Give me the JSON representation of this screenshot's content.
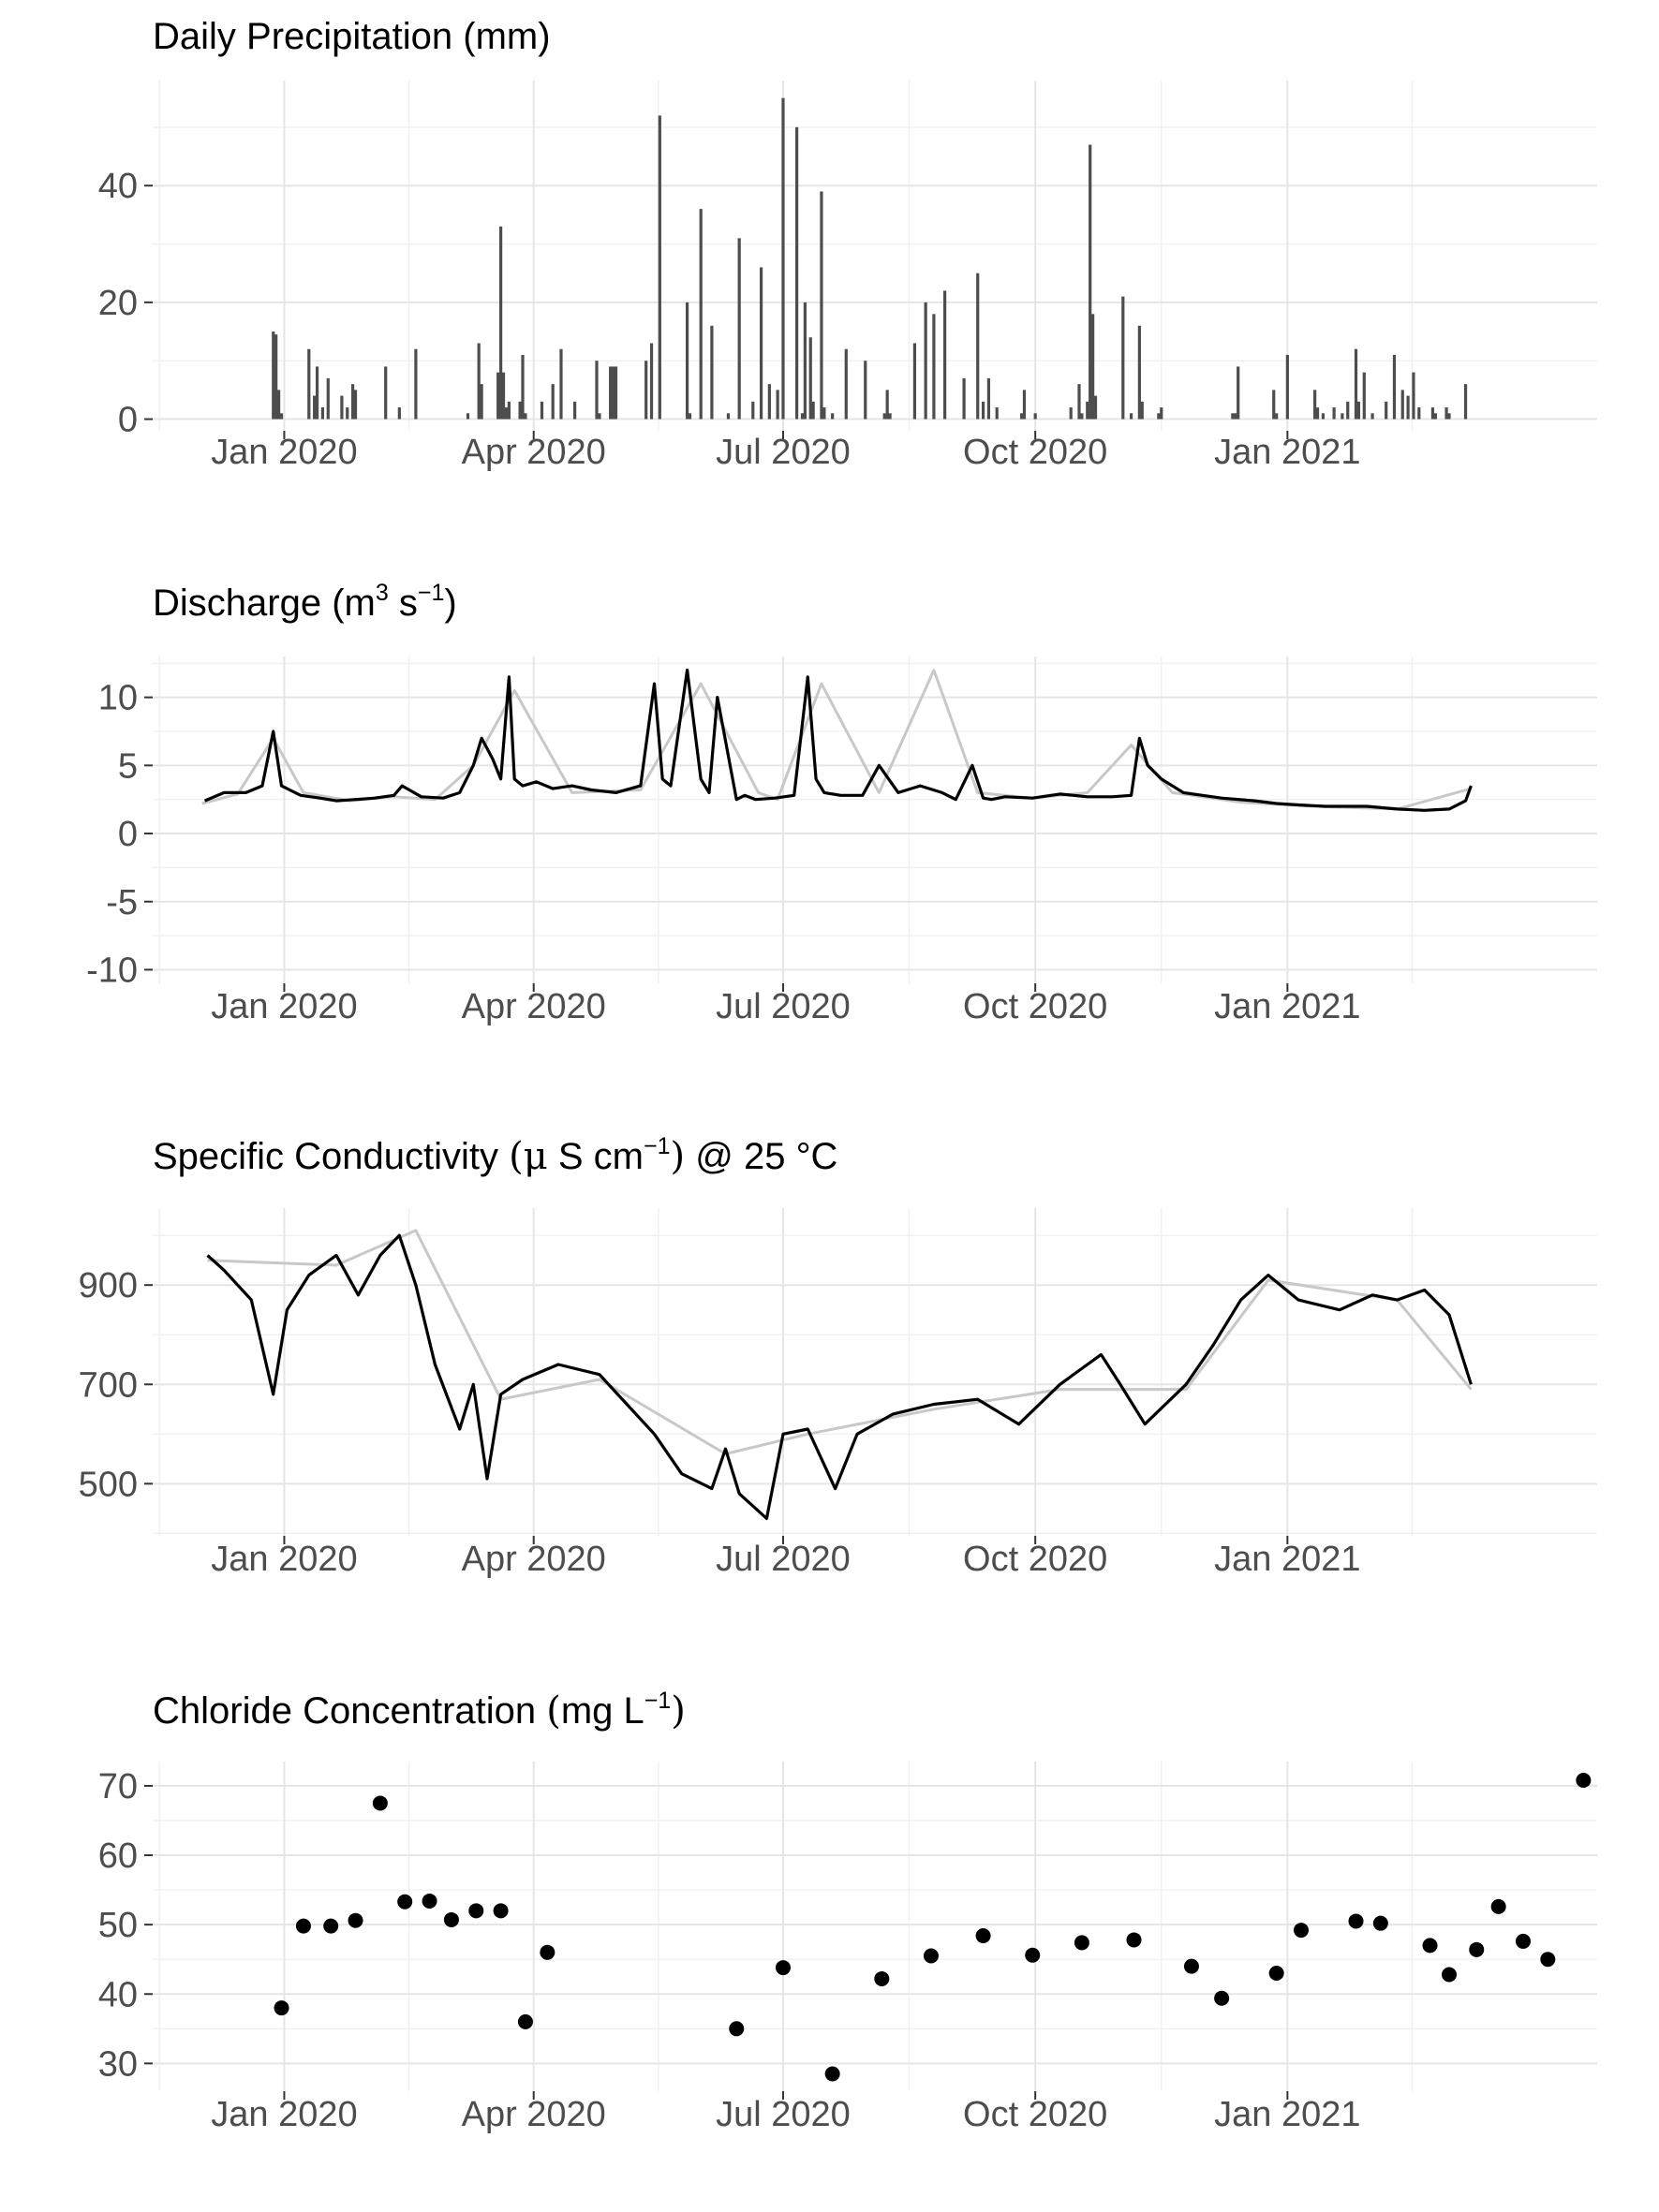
{
  "chart_data": [
    {
      "type": "bar",
      "title": "Daily Precipitation (mm)",
      "x_ticks": [
        "Jan 2020",
        "Apr 2020",
        "Jul 2020",
        "Oct 2020",
        "Jan 2021"
      ],
      "y_ticks": [
        "0",
        "20",
        "40"
      ],
      "ylim": [
        -2,
        58
      ],
      "xlim": [
        "2019-11-14",
        "2021-04-24"
      ],
      "grid": true,
      "color": "#4d4d4d",
      "dates": [
        "2019-12-28",
        "2019-12-29",
        "2019-12-30",
        "2019-12-31",
        "2020-01-10",
        "2020-01-12",
        "2020-01-13",
        "2020-01-15",
        "2020-01-17",
        "2020-01-22",
        "2020-01-24",
        "2020-01-26",
        "2020-01-27",
        "2020-02-07",
        "2020-02-12",
        "2020-02-18",
        "2020-03-08",
        "2020-03-12",
        "2020-03-13",
        "2020-03-19",
        "2020-03-20",
        "2020-03-21",
        "2020-03-22",
        "2020-03-23",
        "2020-03-27",
        "2020-03-28",
        "2020-03-29",
        "2020-04-04",
        "2020-04-08",
        "2020-04-11",
        "2020-04-16",
        "2020-04-24",
        "2020-04-25",
        "2020-04-29",
        "2020-04-30",
        "2020-05-01",
        "2020-05-12",
        "2020-05-14",
        "2020-05-17",
        "2020-05-27",
        "2020-05-28",
        "2020-06-01",
        "2020-06-05",
        "2020-06-11",
        "2020-06-15",
        "2020-06-20",
        "2020-06-23",
        "2020-06-26",
        "2020-06-29",
        "2020-07-01",
        "2020-07-06",
        "2020-07-08",
        "2020-07-09",
        "2020-07-11",
        "2020-07-12",
        "2020-07-15",
        "2020-07-16",
        "2020-07-19",
        "2020-07-24",
        "2020-07-31",
        "2020-08-07",
        "2020-08-08",
        "2020-08-09",
        "2020-08-18",
        "2020-08-22",
        "2020-08-25",
        "2020-08-29",
        "2020-09-05",
        "2020-09-10",
        "2020-09-12",
        "2020-09-14",
        "2020-09-17",
        "2020-09-26",
        "2020-09-27",
        "2020-10-01",
        "2020-10-14",
        "2020-10-17",
        "2020-10-18",
        "2020-10-20",
        "2020-10-21",
        "2020-10-22",
        "2020-10-23",
        "2020-11-02",
        "2020-11-05",
        "2020-11-08",
        "2020-11-09",
        "2020-11-15",
        "2020-11-16",
        "2020-12-12",
        "2020-12-13",
        "2020-12-14",
        "2020-12-27",
        "2020-12-28",
        "2021-01-01",
        "2021-01-11",
        "2021-01-12",
        "2021-01-14",
        "2021-01-18",
        "2021-01-21",
        "2021-01-23",
        "2021-01-26",
        "2021-01-27",
        "2021-01-29",
        "2021-02-01",
        "2021-02-06",
        "2021-02-09",
        "2021-02-12",
        "2021-02-14",
        "2021-02-16",
        "2021-02-18",
        "2021-02-23",
        "2021-02-24",
        "2021-02-28",
        "2021-03-01",
        "2021-03-07"
      ],
      "values": [
        15,
        14.5,
        5,
        1,
        12,
        4,
        9,
        2,
        7,
        4,
        2,
        6,
        5,
        9,
        2,
        12,
        1,
        13,
        6,
        8,
        33,
        8,
        2,
        3,
        3,
        11,
        1,
        3,
        6,
        12,
        3,
        10,
        1,
        9,
        9,
        9,
        10,
        13,
        52,
        20,
        1,
        36,
        16,
        1,
        31,
        3,
        26,
        6,
        5,
        55,
        50,
        1,
        20,
        14,
        3,
        39,
        2,
        1,
        12,
        10,
        1,
        5,
        1,
        13,
        20,
        18,
        22,
        7,
        25,
        3,
        7,
        2,
        1,
        5,
        1,
        2,
        6,
        1,
        3,
        47,
        18,
        4,
        21,
        1,
        16,
        3,
        1,
        2,
        1,
        1,
        9,
        5,
        1,
        11,
        5,
        2,
        1,
        2,
        1,
        3,
        12,
        3,
        8,
        1,
        3,
        11,
        5,
        4,
        8,
        2,
        2,
        1,
        2,
        1,
        6
      ]
    },
    {
      "type": "line",
      "title_main": "Discharge (m",
      "title_sup1": "3",
      "title_mid": " s",
      "title_sup2": "−1",
      "title_end": ")",
      "x_ticks": [
        "Jan 2020",
        "Apr 2020",
        "Jul 2020",
        "Oct 2020",
        "Jan 2021"
      ],
      "y_ticks": [
        "10",
        "5",
        "0",
        "-5",
        "-10"
      ],
      "ylim": [
        -11,
        13
      ],
      "xlim": [
        "2019-11-14",
        "2021-04-24"
      ],
      "grid": true,
      "series": [
        {
          "color": "#000000",
          "x": [
            "2019-12-03",
            "2019-12-10",
            "2019-12-18",
            "2019-12-24",
            "2019-12-28",
            "2019-12-31",
            "2020-01-03",
            "2020-01-07",
            "2020-01-14",
            "2020-01-20",
            "2020-01-27",
            "2020-02-03",
            "2020-02-10",
            "2020-02-13",
            "2020-02-20",
            "2020-02-28",
            "2020-03-05",
            "2020-03-10",
            "2020-03-13",
            "2020-03-17",
            "2020-03-20",
            "2020-03-23",
            "2020-03-25",
            "2020-03-28",
            "2020-04-02",
            "2020-04-08",
            "2020-04-15",
            "2020-04-22",
            "2020-05-01",
            "2020-05-10",
            "2020-05-15",
            "2020-05-18",
            "2020-05-21",
            "2020-05-27",
            "2020-06-01",
            "2020-06-04",
            "2020-06-07",
            "2020-06-14",
            "2020-06-17",
            "2020-06-21",
            "2020-06-28",
            "2020-07-05",
            "2020-07-10",
            "2020-07-13",
            "2020-07-16",
            "2020-07-22",
            "2020-07-30",
            "2020-08-05",
            "2020-08-12",
            "2020-08-20",
            "2020-08-28",
            "2020-09-02",
            "2020-09-08",
            "2020-09-12",
            "2020-09-15",
            "2020-09-20",
            "2020-09-30",
            "2020-10-10",
            "2020-10-20",
            "2020-10-29",
            "2020-11-05",
            "2020-11-08",
            "2020-11-11",
            "2020-11-16",
            "2020-11-24",
            "2020-12-01",
            "2020-12-08",
            "2020-12-20",
            "2020-12-28",
            "2021-01-05",
            "2021-01-15",
            "2021-01-30",
            "2021-02-10",
            "2021-02-20",
            "2021-03-01",
            "2021-03-07",
            "2021-03-09"
          ],
          "y": [
            2.4,
            3,
            3,
            3.5,
            7.5,
            3.5,
            3.2,
            2.8,
            2.6,
            2.4,
            2.5,
            2.6,
            2.8,
            3.5,
            2.7,
            2.6,
            3,
            5,
            7,
            5.5,
            4,
            11.5,
            4,
            3.5,
            3.8,
            3.3,
            3.5,
            3.2,
            3,
            3.5,
            11,
            4,
            3.5,
            12,
            4,
            3,
            10,
            2.5,
            2.8,
            2.5,
            2.6,
            2.8,
            11.5,
            4,
            3,
            2.8,
            2.8,
            5,
            3,
            3.5,
            3,
            2.5,
            5,
            2.6,
            2.5,
            2.7,
            2.6,
            2.9,
            2.7,
            2.7,
            2.8,
            7,
            5,
            4,
            3,
            2.8,
            2.6,
            2.4,
            2.2,
            2.1,
            2,
            2,
            1.8,
            1.7,
            1.8,
            2.4,
            3.5
          ]
        },
        {
          "color": "#c8c8c8",
          "x": [
            "2019-12-02",
            "2019-12-15",
            "2019-12-28",
            "2020-01-08",
            "2020-01-25",
            "2020-02-10",
            "2020-02-25",
            "2020-03-10",
            "2020-03-25",
            "2020-04-15",
            "2020-05-10",
            "2020-06-01",
            "2020-06-22",
            "2020-06-29",
            "2020-07-15",
            "2020-08-05",
            "2020-08-25",
            "2020-09-10",
            "2020-09-30",
            "2020-10-20",
            "2020-11-05",
            "2020-11-20",
            "2020-12-15",
            "2021-01-10",
            "2021-02-10",
            "2021-03-09"
          ],
          "y": [
            2.2,
            2.9,
            7,
            3,
            2.4,
            2.7,
            2.5,
            5,
            10.5,
            3,
            3.2,
            11,
            3,
            2.5,
            11,
            3,
            12,
            3,
            2.6,
            3,
            6.5,
            3,
            2.3,
            2,
            1.8,
            3.3
          ]
        }
      ]
    },
    {
      "type": "line",
      "title_main": "Specific Conductivity ",
      "title_open": "(",
      "title_mu": "μ",
      "title_units": " S cm",
      "title_sup": "−1",
      "title_close": ")",
      "title_end": " @ 25 °C",
      "x_ticks": [
        "Jan 2020",
        "Apr 2020",
        "Jul 2020",
        "Oct 2020",
        "Jan 2021"
      ],
      "y_ticks": [
        "900",
        "700",
        "500"
      ],
      "ylim": [
        395,
        1055
      ],
      "xlim": [
        "2019-11-14",
        "2021-04-24"
      ],
      "grid": true,
      "series": [
        {
          "color": "#000000",
          "x": [
            "2019-12-04",
            "2019-12-10",
            "2019-12-20",
            "2019-12-28",
            "2020-01-02",
            "2020-01-10",
            "2020-01-20",
            "2020-01-28",
            "2020-02-05",
            "2020-02-12",
            "2020-02-18",
            "2020-02-25",
            "2020-03-05",
            "2020-03-10",
            "2020-03-15",
            "2020-03-20",
            "2020-03-28",
            "2020-04-10",
            "2020-04-25",
            "2020-05-05",
            "2020-05-15",
            "2020-05-25",
            "2020-06-05",
            "2020-06-10",
            "2020-06-15",
            "2020-06-25",
            "2020-07-01",
            "2020-07-10",
            "2020-07-20",
            "2020-07-28",
            "2020-08-10",
            "2020-08-25",
            "2020-09-10",
            "2020-09-25",
            "2020-10-10",
            "2020-10-25",
            "2020-11-01",
            "2020-11-10",
            "2020-11-25",
            "2020-12-05",
            "2020-12-15",
            "2020-12-25",
            "2021-01-05",
            "2021-01-20",
            "2021-02-01",
            "2021-02-10",
            "2021-02-20",
            "2021-03-01",
            "2021-03-09"
          ],
          "y": [
            960,
            930,
            870,
            680,
            850,
            920,
            960,
            880,
            960,
            1000,
            900,
            740,
            610,
            700,
            510,
            680,
            710,
            740,
            720,
            660,
            600,
            520,
            490,
            570,
            480,
            430,
            600,
            610,
            490,
            600,
            640,
            660,
            670,
            620,
            700,
            760,
            700,
            620,
            700,
            780,
            870,
            920,
            870,
            850,
            880,
            870,
            890,
            840,
            700
          ]
        },
        {
          "color": "#c8c8c8",
          "x": [
            "2019-12-04",
            "2020-01-20",
            "2020-02-18",
            "2020-03-20",
            "2020-04-25",
            "2020-06-10",
            "2020-07-10",
            "2020-08-25",
            "2020-10-10",
            "2020-11-25",
            "2020-12-25",
            "2021-02-10",
            "2021-03-09"
          ],
          "y": [
            950,
            940,
            1010,
            670,
            710,
            560,
            600,
            650,
            690,
            690,
            910,
            870,
            690
          ]
        }
      ]
    },
    {
      "type": "scatter",
      "title_main": "Chloride Concentration ",
      "title_open": "(",
      "title_units": "mg L",
      "title_sup": "−1",
      "title_close": ")",
      "x_ticks": [
        "Jan 2020",
        "Apr 2020",
        "Jul 2020",
        "Oct 2020",
        "Jan 2021"
      ],
      "y_ticks": [
        "70",
        "60",
        "50",
        "40",
        "30"
      ],
      "ylim": [
        26,
        73.5
      ],
      "xlim": [
        "2019-11-14",
        "2021-04-24"
      ],
      "grid": true,
      "color": "#000000",
      "points": [
        {
          "x": "2019-12-31",
          "y": 38
        },
        {
          "x": "2020-01-08",
          "y": 49.8
        },
        {
          "x": "2020-01-18",
          "y": 49.8
        },
        {
          "x": "2020-01-27",
          "y": 50.6
        },
        {
          "x": "2020-02-05",
          "y": 67.5
        },
        {
          "x": "2020-02-14",
          "y": 53.3
        },
        {
          "x": "2020-02-23",
          "y": 53.4
        },
        {
          "x": "2020-03-02",
          "y": 50.7
        },
        {
          "x": "2020-03-11",
          "y": 52
        },
        {
          "x": "2020-03-20",
          "y": 52
        },
        {
          "x": "2020-03-29",
          "y": 36
        },
        {
          "x": "2020-04-06",
          "y": 46
        },
        {
          "x": "2020-06-14",
          "y": 35
        },
        {
          "x": "2020-07-01",
          "y": 43.8
        },
        {
          "x": "2020-07-19",
          "y": 28.5
        },
        {
          "x": "2020-08-06",
          "y": 42.2
        },
        {
          "x": "2020-08-24",
          "y": 45.5
        },
        {
          "x": "2020-09-12",
          "y": 48.4
        },
        {
          "x": "2020-09-30",
          "y": 45.6
        },
        {
          "x": "2020-10-18",
          "y": 47.4
        },
        {
          "x": "2020-11-06",
          "y": 47.8
        },
        {
          "x": "2020-11-27",
          "y": 44
        },
        {
          "x": "2020-12-08",
          "y": 39.4
        },
        {
          "x": "2020-12-28",
          "y": 43
        },
        {
          "x": "2021-01-06",
          "y": 49.2
        },
        {
          "x": "2021-01-26",
          "y": 50.5
        },
        {
          "x": "2021-02-04",
          "y": 50.2
        },
        {
          "x": "2021-02-22",
          "y": 47
        },
        {
          "x": "2021-03-01",
          "y": 42.8
        },
        {
          "x": "2021-03-11",
          "y": 46.4
        },
        {
          "x": "2021-03-19",
          "y": 52.6
        },
        {
          "x": "2021-03-28",
          "y": 47.6
        },
        {
          "x": "2021-04-06",
          "y": 45
        },
        {
          "x": "2021-04-19",
          "y": 70.8
        }
      ]
    }
  ]
}
